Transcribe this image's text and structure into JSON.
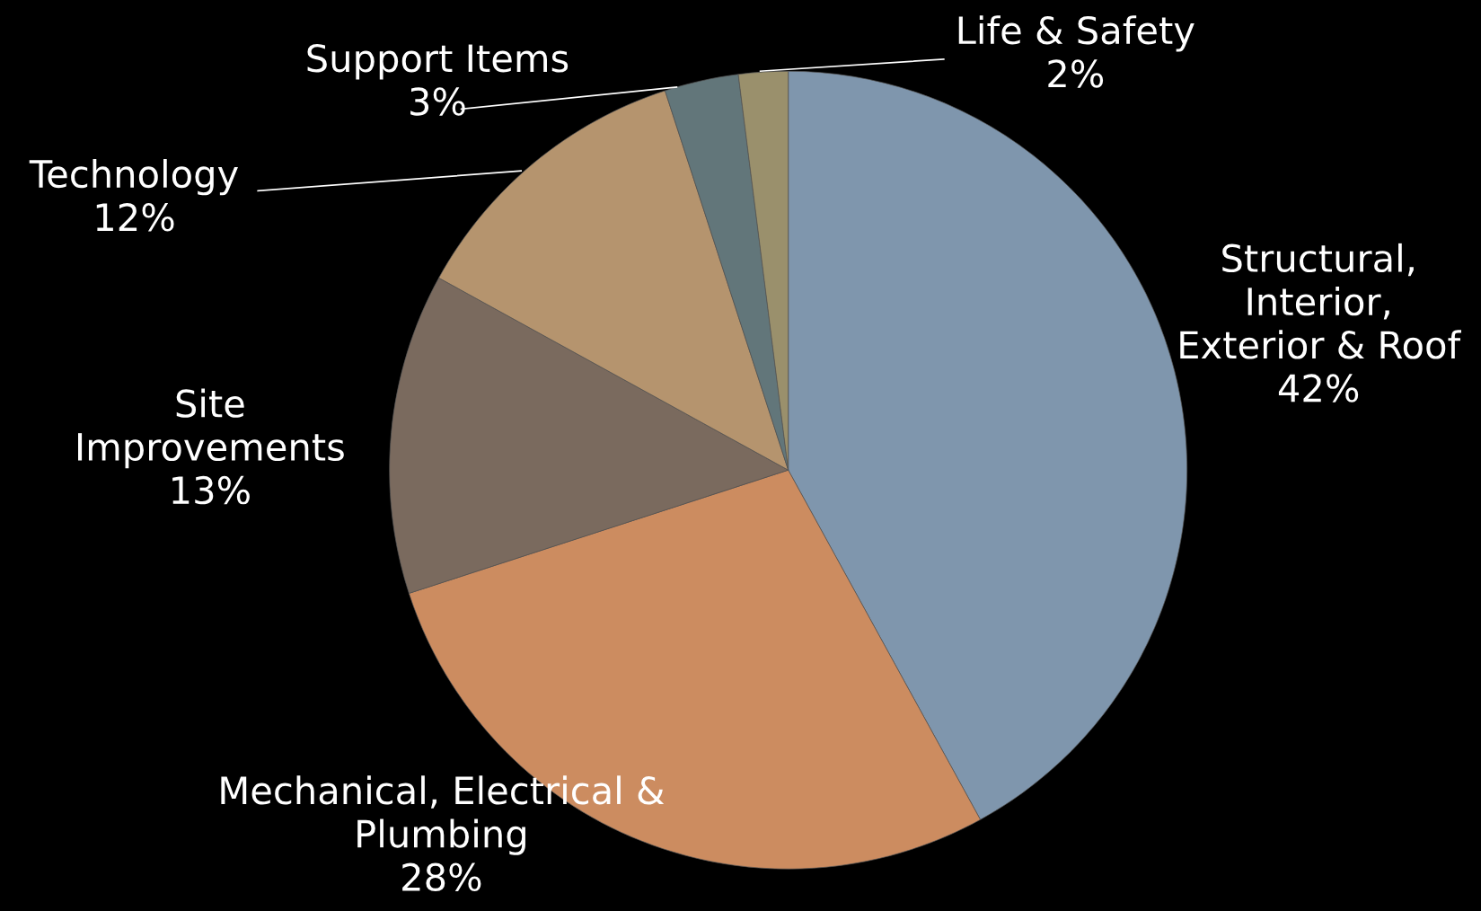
{
  "chart_data": {
    "type": "pie",
    "categories": [
      "Structural,\nInterior,\nExterior & Roof",
      "Mechanical, Electrical &\nPlumbing",
      "Site\nImprovements",
      "Technology",
      "Support Items",
      "Life & Safety"
    ],
    "values": [
      42,
      28,
      13,
      12,
      3,
      2
    ],
    "value_labels": [
      "42%",
      "28%",
      "13%",
      "12%",
      "3%",
      "2%"
    ],
    "colors": [
      "#7f96ad",
      "#cc8c60",
      "#7a6a5e",
      "#b5946e",
      "#62767a",
      "#9a906c"
    ],
    "legend": false
  }
}
